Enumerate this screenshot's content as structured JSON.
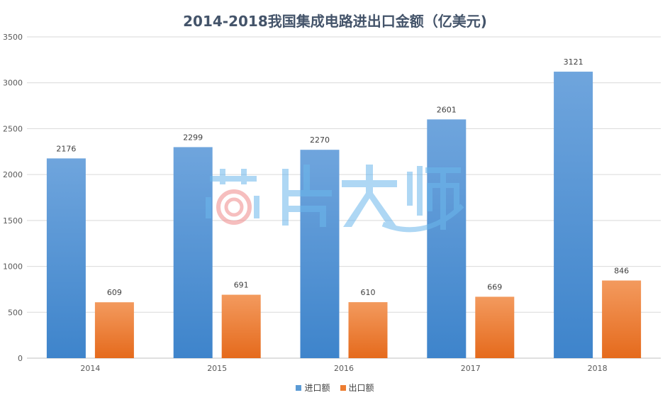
{
  "chart_data": {
    "type": "bar",
    "title": "2014-2018我国集成电路进出口金额（亿美元)",
    "categories": [
      "2014",
      "2015",
      "2016",
      "2017",
      "2018"
    ],
    "series": [
      {
        "name": "进口额",
        "values": [
          2176,
          2299,
          2270,
          2601,
          3121
        ],
        "color_top": "#6FA5DD",
        "color_bottom": "#3E84CB"
      },
      {
        "name": "出口额",
        "values": [
          609,
          691,
          610,
          669,
          846
        ],
        "color_top": "#F39A5E",
        "color_bottom": "#E56A1C"
      }
    ],
    "ylim": [
      0,
      3500
    ],
    "yticks": [
      0,
      500,
      1000,
      1500,
      2000,
      2500,
      3000,
      3500
    ],
    "grid": true,
    "legend_position": "bottom",
    "data_labels": true
  },
  "watermark": {
    "text": "芯片大师"
  }
}
